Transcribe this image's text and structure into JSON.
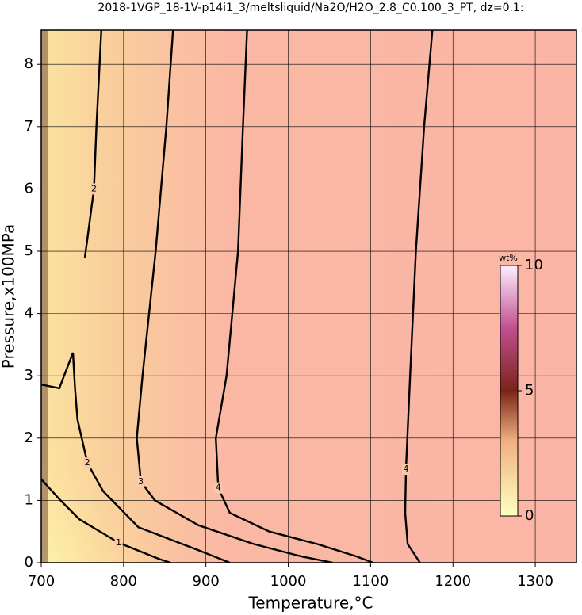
{
  "chart_data": {
    "type": "contour",
    "title": "2018-1VGP_18-1V-p14i1_3/meltsliquid/Na2O/H2O_2.8_C0.100_3_PT, dz=0.1:",
    "x_label": "Temperature,°C",
    "y_label": "Pressure,x100MPa",
    "xlim": [
      700,
      1350
    ],
    "ylim": [
      0,
      8.55
    ],
    "xticks": [
      700,
      800,
      900,
      1000,
      1100,
      1200,
      1300
    ],
    "yticks": [
      0,
      1,
      2,
      3,
      4,
      5,
      6,
      7,
      8
    ],
    "grid": true,
    "series": [
      {
        "level": 4,
        "x": [
          1175,
          1165,
          1155,
          1148,
          1143,
          1142,
          1145,
          1160
        ],
        "values": [
          8.55,
          7,
          5,
          3,
          1.5,
          0.8,
          0.3,
          0
        ]
      },
      {
        "level": 4,
        "x": [
          950,
          945,
          939,
          925,
          912,
          915,
          929,
          977,
          1035,
          1083,
          1103
        ],
        "values": [
          8.55,
          7,
          5,
          3,
          2,
          1.2,
          0.8,
          0.5,
          0.3,
          0.1,
          0
        ]
      },
      {
        "level": 3,
        "x": [
          860,
          852,
          839,
          823,
          816,
          821,
          838,
          891,
          958,
          1016,
          1054
        ],
        "values": [
          8.55,
          7,
          5,
          3,
          2,
          1.3,
          1,
          0.6,
          0.3,
          0.1,
          0
        ]
      },
      {
        "level": 2,
        "x": [
          773,
          767,
          764,
          756,
          753
        ],
        "values": [
          8.55,
          7,
          6,
          5.2,
          4.9
        ]
      },
      {
        "level": 2,
        "x": [
          700,
          722,
          738.5,
          741,
          744,
          756,
          775,
          818,
          891,
          929
        ],
        "values": [
          2.86,
          2.8,
          3.37,
          2.8,
          2.3,
          1.6,
          1.15,
          0.57,
          0.2,
          0
        ]
      },
      {
        "level": 1,
        "x": [
          700,
          722,
          746,
          794,
          843,
          857
        ],
        "values": [
          1.34,
          1.02,
          0.7,
          0.32,
          0.06,
          0
        ]
      }
    ],
    "colorbar": {
      "label": "wt%",
      "lim": [
        0,
        10
      ],
      "ticks": [
        0,
        5,
        10
      ]
    }
  }
}
